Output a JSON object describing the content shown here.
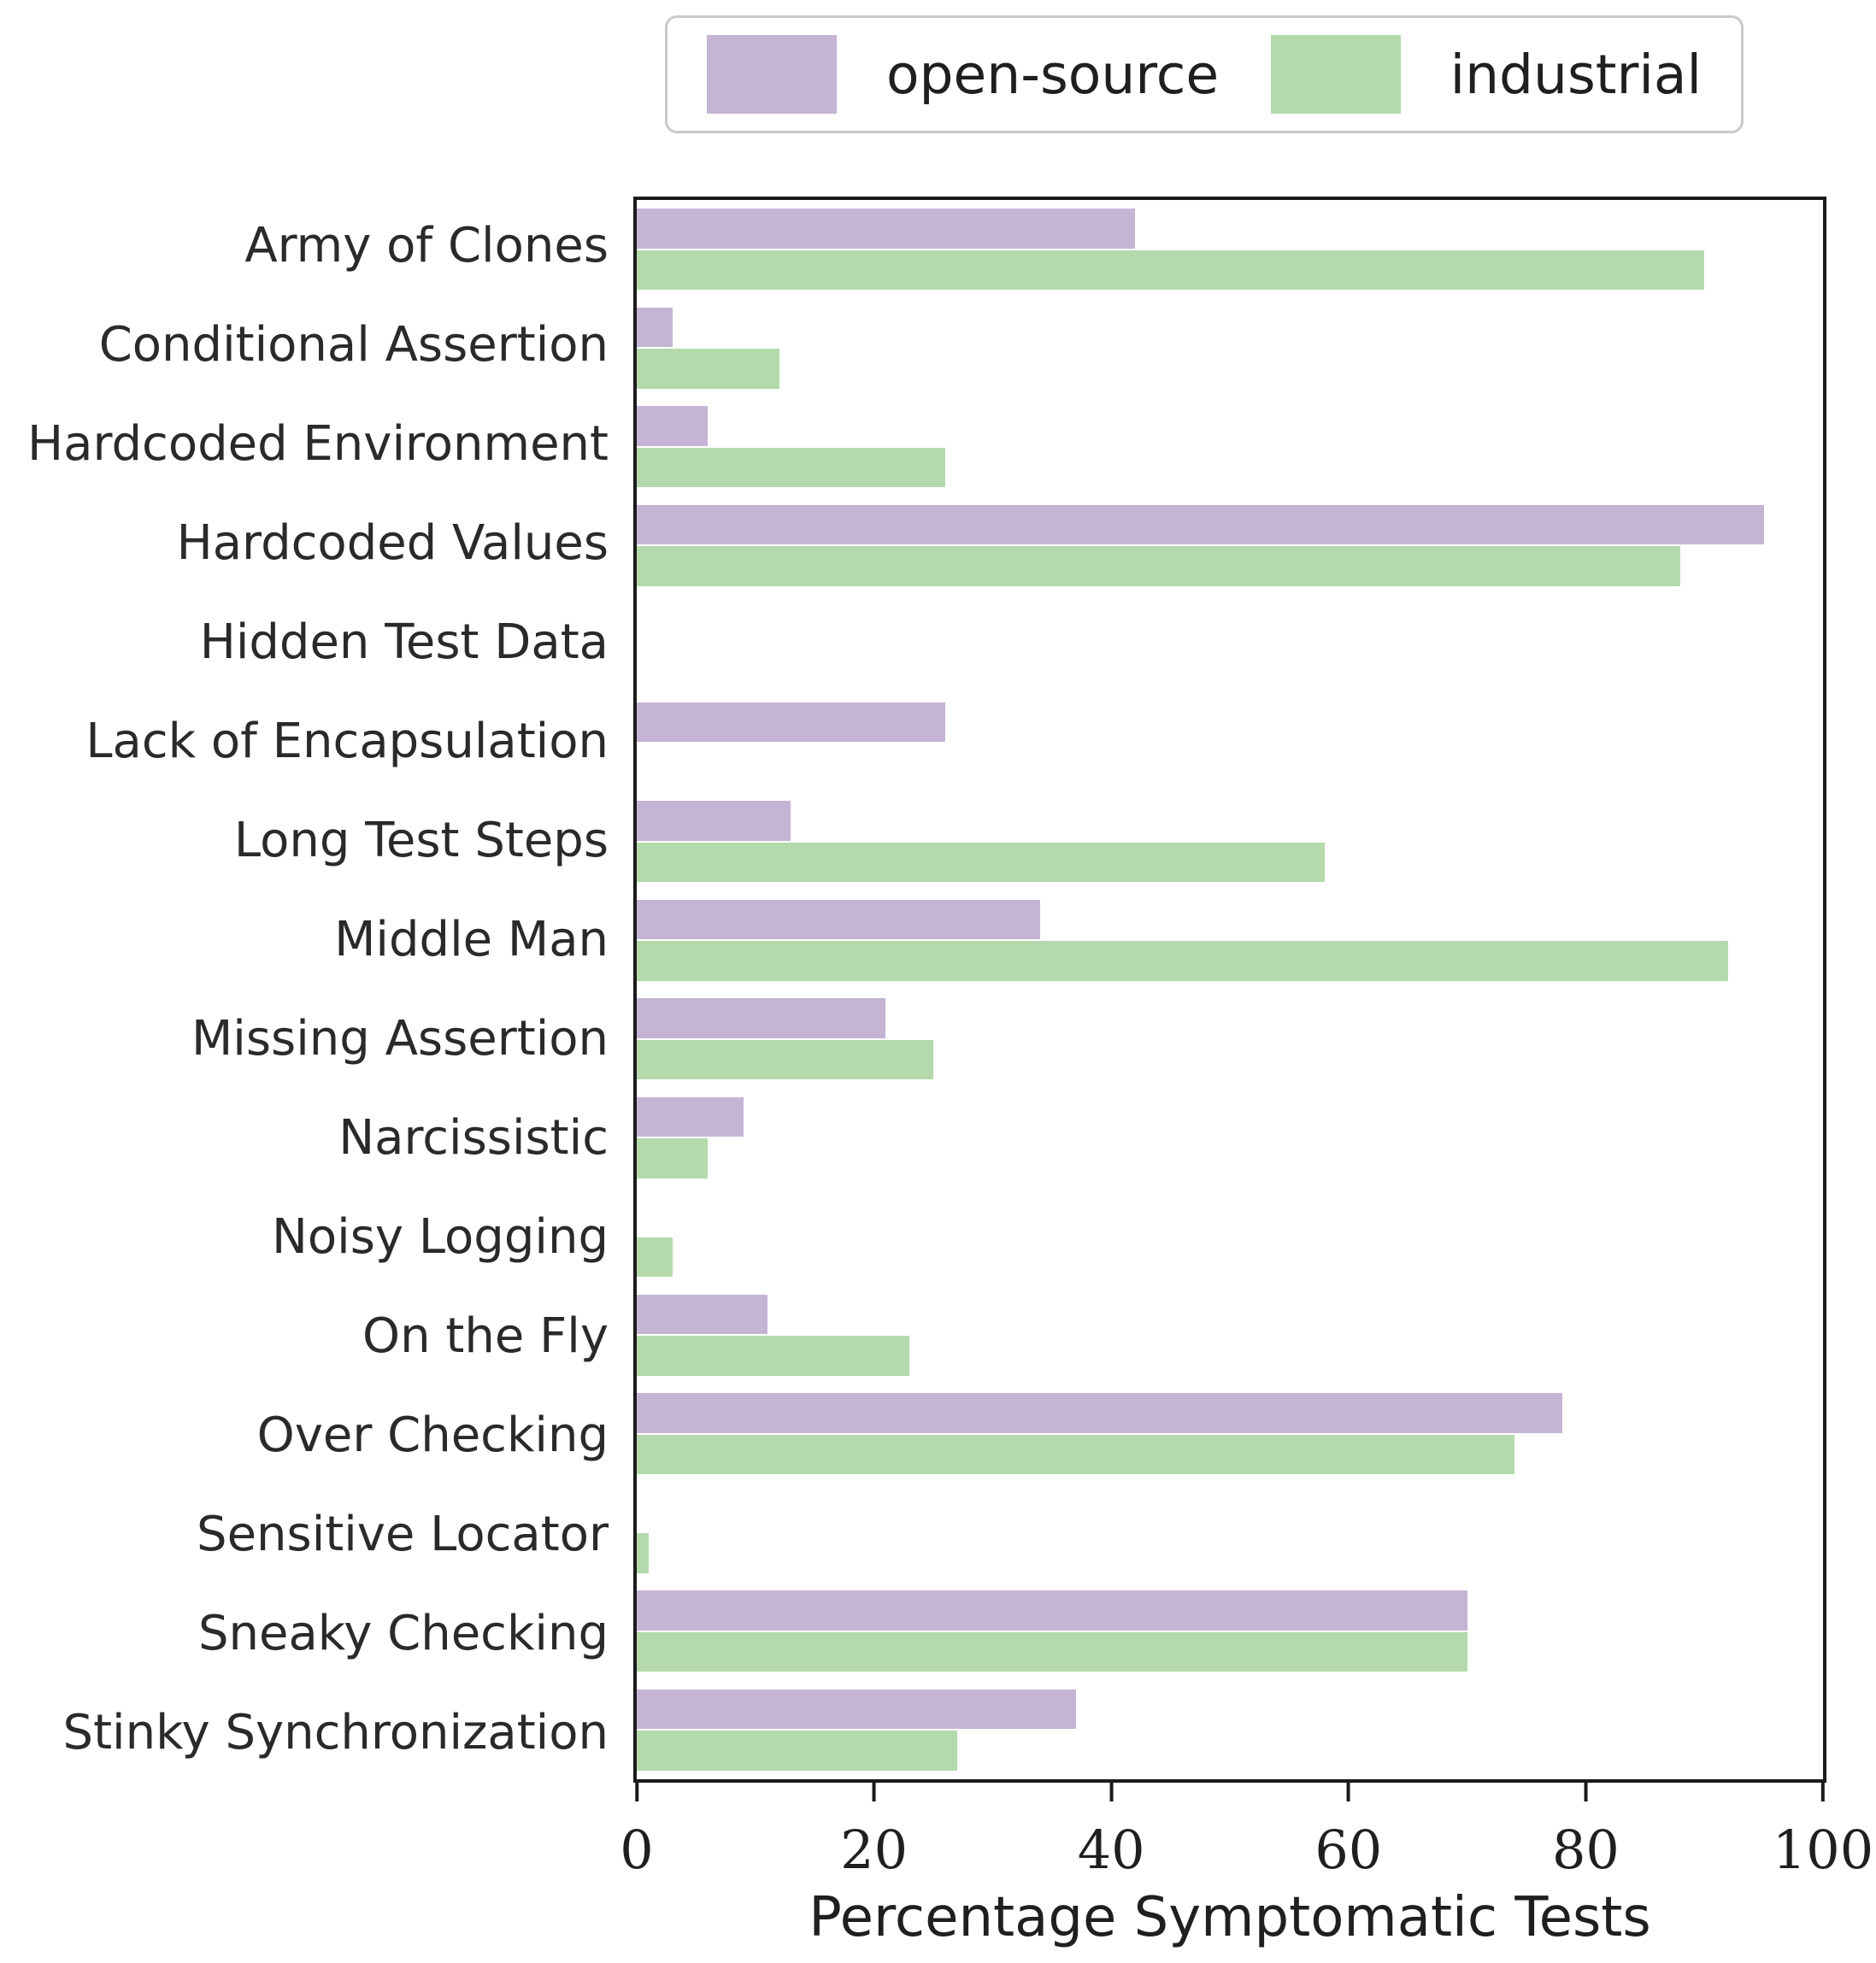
{
  "legend": {
    "series": [
      {
        "label": "open-source",
        "color": "#c6b4d4"
      },
      {
        "label": "industrial",
        "color": "#b3d9ac"
      }
    ]
  },
  "axis": {
    "xlabel": "Percentage Symptomatic Tests",
    "xticks": [
      "0",
      "20",
      "40",
      "60",
      "80",
      "100"
    ]
  },
  "chart_data": {
    "type": "bar",
    "orientation": "horizontal",
    "title": "",
    "xlabel": "Percentage Symptomatic Tests",
    "ylabel": "",
    "xlim": [
      0,
      100
    ],
    "xticks": [
      0,
      20,
      40,
      60,
      80,
      100
    ],
    "grid": false,
    "legend_position": "top-center",
    "categories": [
      "Army of Clones",
      "Conditional Assertion",
      "Hardcoded Environment",
      "Hardcoded Values",
      "Hidden Test Data",
      "Lack of Encapsulation",
      "Long Test Steps",
      "Middle Man",
      "Missing Assertion",
      "Narcissistic",
      "Noisy Logging",
      "On the Fly",
      "Over Checking",
      "Sensitive Locator",
      "Sneaky Checking",
      "Stinky Synchronization"
    ],
    "series": [
      {
        "name": "open-source",
        "color": "#c6b4d4",
        "values": [
          42,
          3,
          6,
          95,
          0,
          26,
          13,
          34,
          21,
          9,
          0,
          11,
          78,
          0,
          70,
          37
        ]
      },
      {
        "name": "industrial",
        "color": "#b3d9ac",
        "values": [
          90,
          12,
          26,
          88,
          0,
          0,
          58,
          92,
          25,
          6,
          3,
          23,
          74,
          1,
          70,
          27
        ]
      }
    ]
  }
}
